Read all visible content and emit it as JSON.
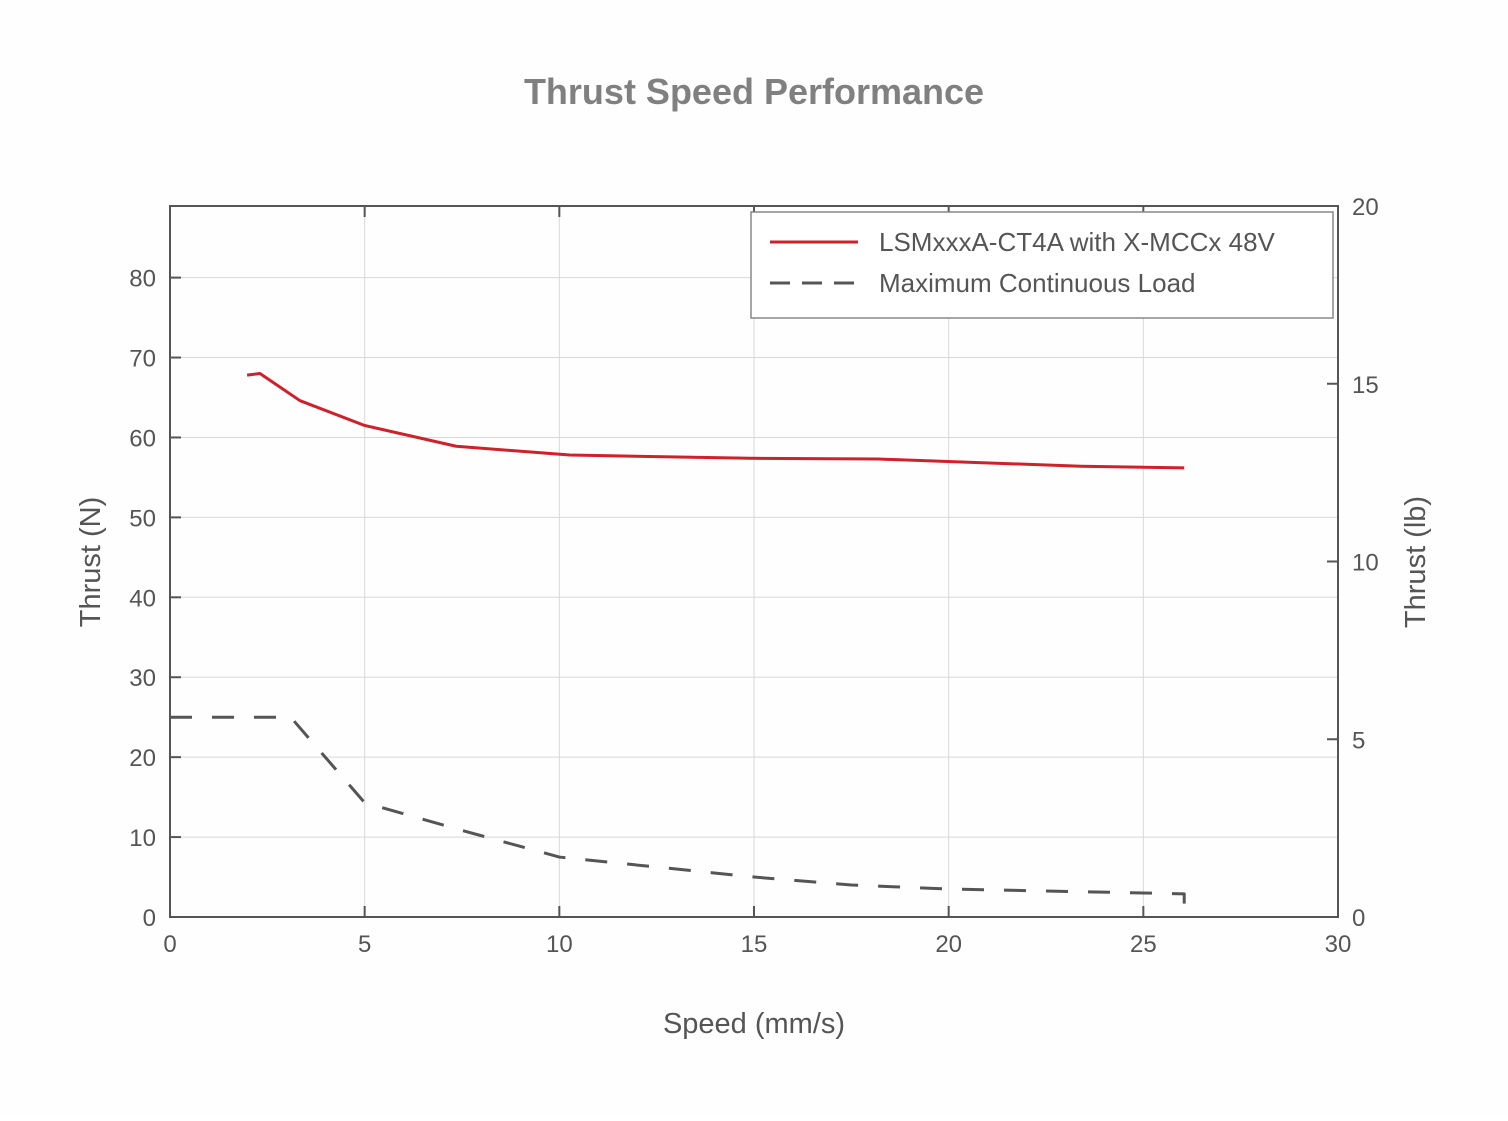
{
  "chart_data": {
    "type": "line",
    "title": "Thrust Speed Performance",
    "xlabel": "Speed (mm/s)",
    "ylabel": "Thrust (N)",
    "y2label": "Thrust (lb)",
    "xlim": [
      0,
      30
    ],
    "ylim": [
      0,
      88.96
    ],
    "y2lim": [
      0,
      20
    ],
    "xticks": [
      0,
      5,
      10,
      15,
      20,
      25,
      30
    ],
    "yticks": [
      0,
      10,
      20,
      30,
      40,
      50,
      60,
      70,
      80
    ],
    "y2ticks": [
      0,
      5,
      10,
      15,
      20
    ],
    "grid": true,
    "legend_position": "top-right",
    "series": [
      {
        "name": "LSMxxxA-CT4A with X-MCCx 48V",
        "color": "#d0202a",
        "style": "solid",
        "x": [
          1.98,
          2.31,
          3.34,
          5.0,
          7.35,
          10.27,
          14.9,
          18.2,
          23.4,
          26.05
        ],
        "y": [
          67.8,
          68.0,
          64.6,
          61.5,
          58.9,
          57.8,
          57.4,
          57.3,
          56.4,
          56.2
        ]
      },
      {
        "name": "Maximum Continuous Load",
        "color": "#555555",
        "style": "dashed",
        "x": [
          0,
          3.1,
          5.0,
          7.45,
          10.0,
          15.0,
          17.5,
          20.0,
          26.05,
          26.05
        ],
        "y": [
          25,
          25,
          14.3,
          10.9,
          7.5,
          5.0,
          4.0,
          3.5,
          2.9,
          0
        ]
      }
    ]
  }
}
